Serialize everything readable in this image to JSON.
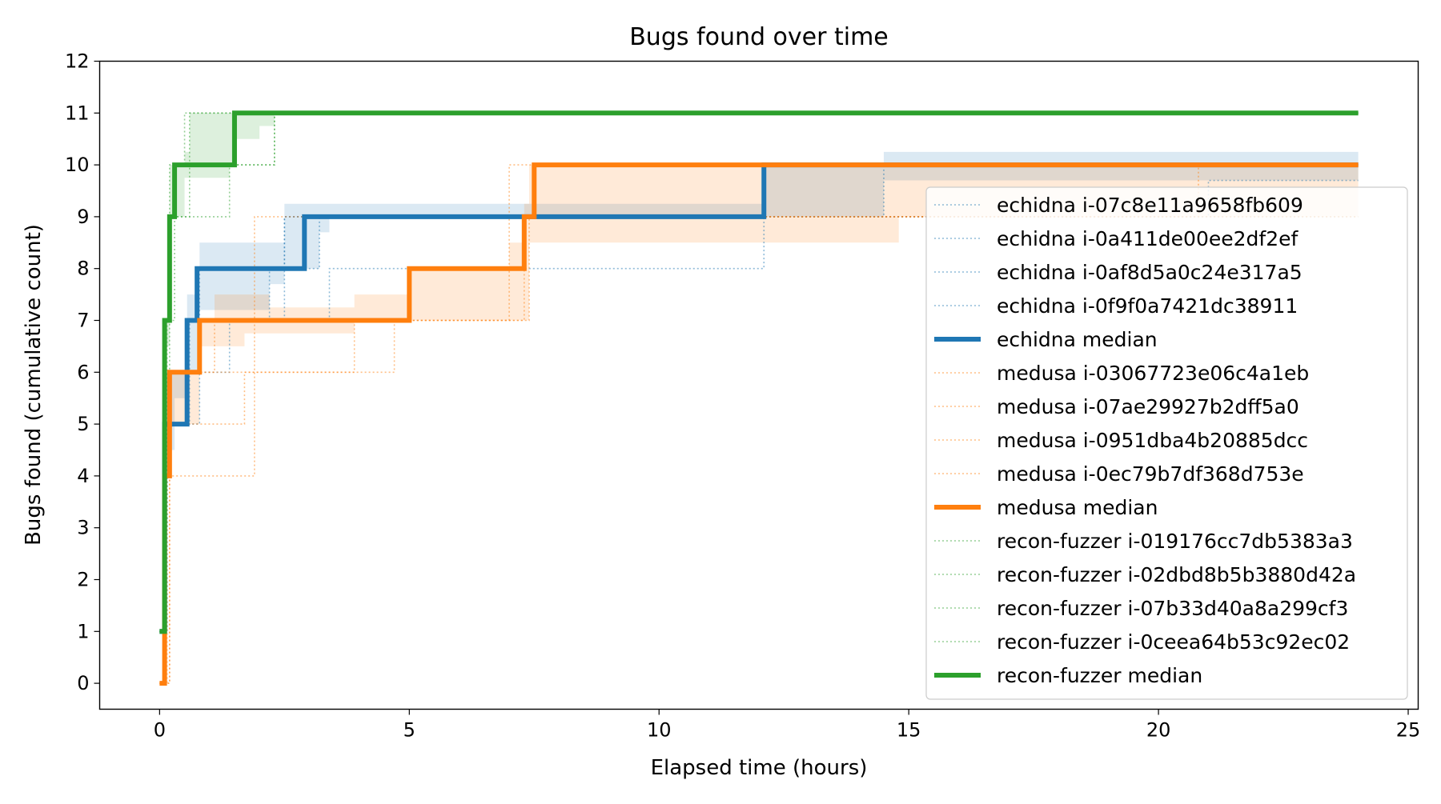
{
  "chart_data": {
    "type": "line",
    "title": "Bugs found over time",
    "xlabel": "Elapsed time (hours)",
    "ylabel": "Bugs found (cumulative count)",
    "xlim": [
      -1.2,
      25.2
    ],
    "ylim": [
      -0.5,
      12
    ],
    "x_ticks": [
      0,
      5,
      10,
      15,
      20,
      25
    ],
    "y_ticks": [
      0,
      1,
      2,
      3,
      4,
      5,
      6,
      7,
      8,
      9,
      10,
      11,
      12
    ],
    "grid": false,
    "legend_position": "right",
    "colors": {
      "echidna": "#1f77b4",
      "medusa": "#ff7f0e",
      "recon-fuzzer": "#2ca02c"
    },
    "series": [
      {
        "name": "echidna i-07c8e11a9658fb609",
        "group": "echidna",
        "style": "dotted",
        "points": [
          [
            0,
            1
          ],
          [
            0.1,
            4
          ],
          [
            0.2,
            6
          ],
          [
            0.8,
            7
          ],
          [
            2.5,
            9
          ],
          [
            14.5,
            10
          ],
          [
            22.2,
            10
          ],
          [
            24,
            10
          ]
        ]
      },
      {
        "name": "echidna i-0a411de00ee2df2ef",
        "group": "echidna",
        "style": "dotted",
        "points": [
          [
            0,
            1
          ],
          [
            0.15,
            5
          ],
          [
            0.6,
            7
          ],
          [
            0.8,
            8
          ],
          [
            2.5,
            9
          ],
          [
            21,
            9.7
          ],
          [
            24,
            9.7
          ]
        ]
      },
      {
        "name": "echidna i-0af8d5a0c24e317a5",
        "group": "echidna",
        "style": "dotted",
        "points": [
          [
            0,
            1
          ],
          [
            0.1,
            5
          ],
          [
            0.4,
            5
          ],
          [
            0.8,
            7
          ],
          [
            3.4,
            8
          ],
          [
            12,
            8
          ],
          [
            12.1,
            10
          ],
          [
            24,
            10
          ]
        ]
      },
      {
        "name": "echidna i-0f9f0a7421dc38911",
        "group": "echidna",
        "style": "dotted",
        "points": [
          [
            0,
            1
          ],
          [
            0.15,
            6
          ],
          [
            0.5,
            6
          ],
          [
            1.4,
            7
          ],
          [
            2.2,
            8
          ],
          [
            3.2,
            9
          ],
          [
            24,
            9
          ]
        ]
      },
      {
        "name": "echidna median",
        "group": "echidna",
        "style": "solid",
        "points": [
          [
            0,
            1
          ],
          [
            0.1,
            5
          ],
          [
            0.55,
            7
          ],
          [
            0.75,
            8
          ],
          [
            2.9,
            9
          ],
          [
            12.1,
            10
          ],
          [
            24,
            10
          ]
        ]
      },
      {
        "name": "medusa i-03067723e06c4a1eb",
        "group": "medusa",
        "style": "dotted",
        "points": [
          [
            0,
            0
          ],
          [
            0.15,
            5
          ],
          [
            1.7,
            6
          ],
          [
            3.9,
            7
          ],
          [
            7,
            10
          ],
          [
            24,
            10
          ]
        ]
      },
      {
        "name": "medusa i-07ae29927b2dff5a0",
        "group": "medusa",
        "style": "dotted",
        "points": [
          [
            0,
            0
          ],
          [
            0.2,
            6
          ],
          [
            1.1,
            7
          ],
          [
            7.3,
            9
          ],
          [
            14.7,
            9
          ],
          [
            24,
            9
          ]
        ]
      },
      {
        "name": "medusa i-0951dba4b20885dcc",
        "group": "medusa",
        "style": "dotted",
        "points": [
          [
            0,
            0
          ],
          [
            0.1,
            4
          ],
          [
            1.9,
            9
          ],
          [
            20.8,
            10
          ],
          [
            24,
            10
          ]
        ]
      },
      {
        "name": "medusa i-0ec79b7df368d753e",
        "group": "medusa",
        "style": "dotted",
        "points": [
          [
            0,
            0
          ],
          [
            0.2,
            6
          ],
          [
            4.7,
            7
          ],
          [
            7.3,
            7
          ],
          [
            7.4,
            9
          ],
          [
            14.7,
            9
          ],
          [
            24,
            9
          ]
        ]
      },
      {
        "name": "medusa median",
        "group": "medusa",
        "style": "solid",
        "points": [
          [
            0,
            0
          ],
          [
            0.1,
            4
          ],
          [
            0.2,
            6
          ],
          [
            0.8,
            7
          ],
          [
            5,
            8
          ],
          [
            7.3,
            9
          ],
          [
            7.5,
            10
          ],
          [
            24,
            10
          ]
        ]
      },
      {
        "name": "recon-fuzzer i-019176cc7db5383a3",
        "group": "recon-fuzzer",
        "style": "dotted",
        "points": [
          [
            0,
            1
          ],
          [
            0.1,
            7
          ],
          [
            0.2,
            10
          ],
          [
            0.5,
            11
          ],
          [
            24,
            11
          ]
        ]
      },
      {
        "name": "recon-fuzzer i-02dbd8b5b3880d42a",
        "group": "recon-fuzzer",
        "style": "dotted",
        "points": [
          [
            0,
            1
          ],
          [
            0.1,
            6
          ],
          [
            0.2,
            9
          ],
          [
            0.5,
            9
          ],
          [
            1.4,
            10
          ],
          [
            2.3,
            11
          ],
          [
            24,
            11
          ]
        ]
      },
      {
        "name": "recon-fuzzer i-07b33d40a8a299cf3",
        "group": "recon-fuzzer",
        "style": "dotted",
        "points": [
          [
            0,
            1
          ],
          [
            0.1,
            7
          ],
          [
            0.3,
            10
          ],
          [
            2,
            10
          ],
          [
            2.3,
            11
          ],
          [
            24,
            11
          ]
        ]
      },
      {
        "name": "recon-fuzzer i-0ceea64b53c92ec02",
        "group": "recon-fuzzer",
        "style": "dotted",
        "points": [
          [
            0,
            1
          ],
          [
            0.1,
            3
          ],
          [
            0.15,
            7
          ],
          [
            0.2,
            9
          ],
          [
            0.6,
            11
          ],
          [
            24,
            11
          ]
        ]
      },
      {
        "name": "recon-fuzzer median",
        "group": "recon-fuzzer",
        "style": "solid",
        "points": [
          [
            0,
            1
          ],
          [
            0.1,
            7
          ],
          [
            0.2,
            9
          ],
          [
            0.3,
            10
          ],
          [
            1.5,
            11
          ],
          [
            24,
            11
          ]
        ]
      }
    ],
    "bands": [
      {
        "group": "echidna",
        "points": [
          [
            0,
            1,
            1
          ],
          [
            0.1,
            4.5,
            6
          ],
          [
            0.3,
            5.5,
            6
          ],
          [
            0.55,
            6,
            7.5
          ],
          [
            0.8,
            7.2,
            8.5
          ],
          [
            2.2,
            7.7,
            8.5
          ],
          [
            2.5,
            8,
            9.25
          ],
          [
            3.2,
            8.7,
            9.25
          ],
          [
            3.4,
            9,
            9.25
          ],
          [
            12.1,
            9,
            10
          ],
          [
            14.5,
            9.7,
            10.25
          ],
          [
            21,
            9.7,
            10.25
          ],
          [
            24,
            9.7,
            10.25
          ]
        ]
      },
      {
        "group": "medusa",
        "points": [
          [
            0,
            0,
            0
          ],
          [
            0.1,
            4,
            5
          ],
          [
            0.2,
            5,
            6
          ],
          [
            0.8,
            6.5,
            7
          ],
          [
            1.1,
            6.5,
            7.5
          ],
          [
            1.7,
            6.75,
            7.5
          ],
          [
            2.2,
            6.75,
            7.25
          ],
          [
            3.9,
            7,
            7.5
          ],
          [
            5,
            7,
            8
          ],
          [
            7,
            7,
            8.5
          ],
          [
            7.3,
            7,
            9.25
          ],
          [
            7.4,
            8.5,
            10
          ],
          [
            14.7,
            8.5,
            10
          ],
          [
            14.8,
            9,
            10
          ],
          [
            24,
            9,
            10
          ]
        ]
      },
      {
        "group": "recon-fuzzer",
        "points": [
          [
            0,
            1,
            1
          ],
          [
            0.1,
            6.5,
            7
          ],
          [
            0.2,
            9,
            10
          ],
          [
            0.5,
            9.75,
            10.25
          ],
          [
            0.6,
            9.75,
            11
          ],
          [
            1.4,
            10,
            11
          ],
          [
            1.5,
            10.5,
            11
          ],
          [
            2,
            10.75,
            11
          ],
          [
            2.3,
            11,
            11
          ],
          [
            24,
            11,
            11
          ]
        ]
      }
    ]
  }
}
